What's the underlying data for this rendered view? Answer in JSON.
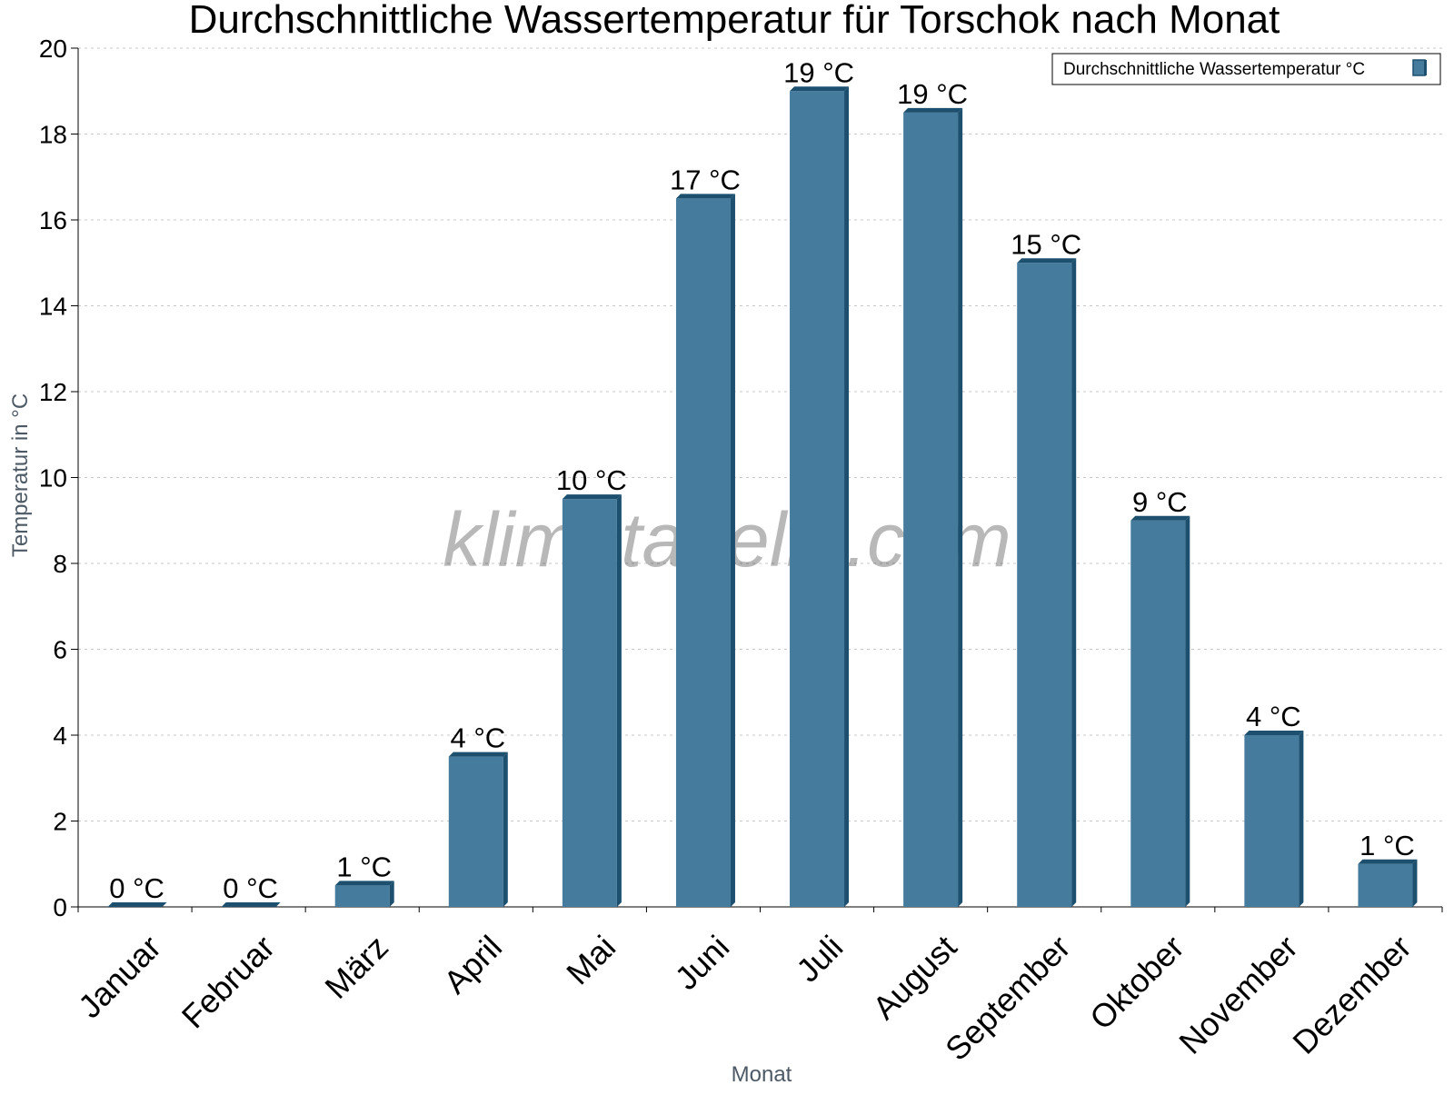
{
  "chart_data": {
    "type": "bar",
    "title": "Durchschnittliche Wassertemperatur für Torschok nach Monat",
    "xlabel": "Monat",
    "ylabel": "Temperatur in °C",
    "categories": [
      "Januar",
      "Februar",
      "März",
      "April",
      "Mai",
      "Juni",
      "Juli",
      "August",
      "September",
      "Oktober",
      "November",
      "Dezember"
    ],
    "series": [
      {
        "name": "Durchschnittliche Wassertemperatur °C",
        "values": [
          0,
          0,
          0.5,
          3.5,
          9.5,
          16.5,
          19,
          18.5,
          15,
          9,
          4,
          1
        ],
        "labels": [
          "0 °C",
          "0 °C",
          "1 °C",
          "4 °C",
          "10 °C",
          "17 °C",
          "19 °C",
          "19 °C",
          "15 °C",
          "9 °C",
          "4 °C",
          "1 °C"
        ]
      }
    ],
    "ylim": [
      0,
      20
    ],
    "yticks": [
      0,
      2,
      4,
      6,
      8,
      10,
      12,
      14,
      16,
      18,
      20
    ],
    "grid": true,
    "legend_position": "top-right",
    "colors": {
      "bar": "#457b9d",
      "bar_dark": "#1d4f6e",
      "grid": "#c8c8c8"
    },
    "watermark": "klimatabelle.com"
  }
}
